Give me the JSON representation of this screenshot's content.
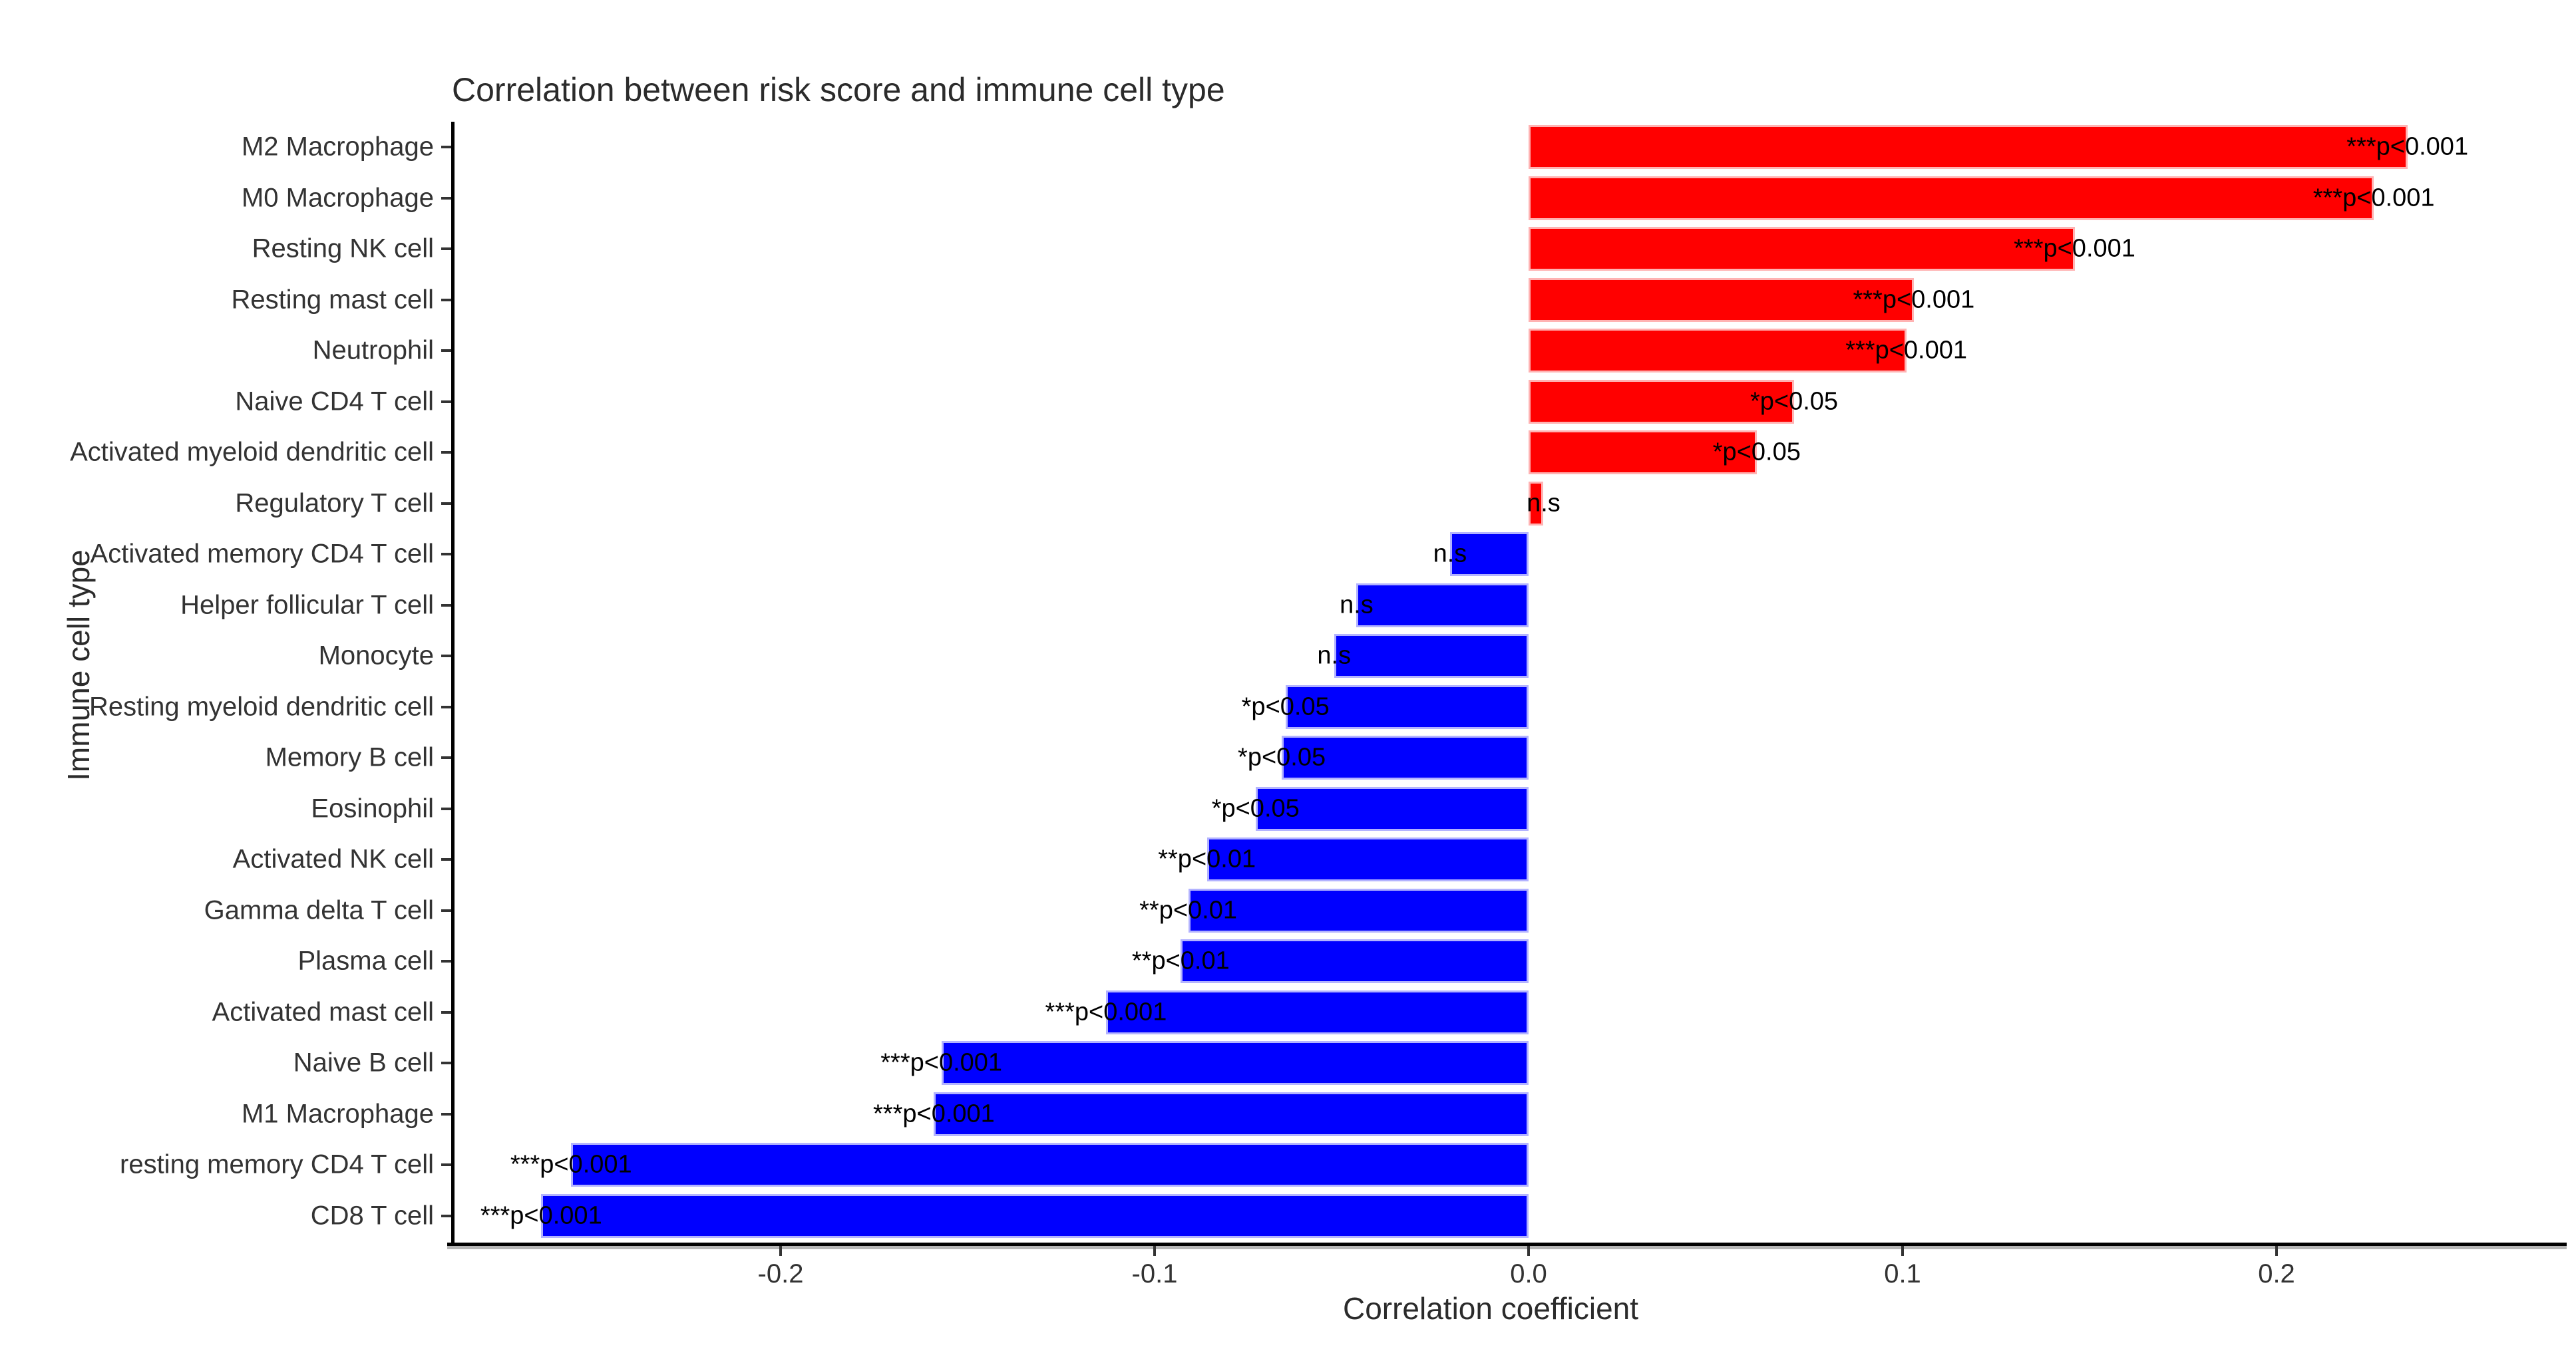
{
  "chart_data": {
    "type": "bar",
    "orientation": "horizontal",
    "title": "Correlation between risk score and immune cell type",
    "xlabel": "Correlation coefficient",
    "ylabel": "Immune cell type",
    "xlim": [
      -0.29,
      0.28
    ],
    "x_ticks": [
      -0.2,
      -0.1,
      0.0,
      0.1,
      0.2
    ],
    "x_tick_labels": [
      "-0.2",
      "-0.1",
      "0.0",
      "0.1",
      "0.2"
    ],
    "grid": false,
    "legend": "none",
    "positive_color": "#ff0000",
    "negative_color": "#0000ff",
    "rows": [
      {
        "category": "M2 Macrophage",
        "value": 0.235,
        "significance": "***p<0.001"
      },
      {
        "category": "M0 Macrophage",
        "value": 0.226,
        "significance": "***p<0.001"
      },
      {
        "category": "Resting NK cell",
        "value": 0.146,
        "significance": "***p<0.001"
      },
      {
        "category": "Resting mast cell",
        "value": 0.103,
        "significance": "***p<0.001"
      },
      {
        "category": "Neutrophil",
        "value": 0.101,
        "significance": "***p<0.001"
      },
      {
        "category": "Naive CD4 T cell",
        "value": 0.071,
        "significance": "*p<0.05"
      },
      {
        "category": "Activated myeloid dendritic cell",
        "value": 0.061,
        "significance": "*p<0.05"
      },
      {
        "category": "Regulatory T cell",
        "value": 0.004,
        "significance": "n.s"
      },
      {
        "category": "Activated memory CD4 T cell",
        "value": -0.021,
        "significance": "n.s"
      },
      {
        "category": "Helper follicular T cell",
        "value": -0.046,
        "significance": "n.s"
      },
      {
        "category": "Monocyte",
        "value": -0.052,
        "significance": "n.s"
      },
      {
        "category": "Resting myeloid dendritic cell",
        "value": -0.065,
        "significance": "*p<0.05"
      },
      {
        "category": "Memory B cell",
        "value": -0.066,
        "significance": "*p<0.05"
      },
      {
        "category": "Eosinophil",
        "value": -0.073,
        "significance": "*p<0.05"
      },
      {
        "category": "Activated NK cell",
        "value": -0.086,
        "significance": "**p<0.01"
      },
      {
        "category": "Gamma delta T cell",
        "value": -0.091,
        "significance": "**p<0.01"
      },
      {
        "category": "Plasma cell",
        "value": -0.093,
        "significance": "**p<0.01"
      },
      {
        "category": "Activated mast cell",
        "value": -0.113,
        "significance": "***p<0.001"
      },
      {
        "category": "Naive B cell",
        "value": -0.157,
        "significance": "***p<0.001"
      },
      {
        "category": "M1 Macrophage",
        "value": -0.159,
        "significance": "***p<0.001"
      },
      {
        "category": "resting memory CD4 T cell",
        "value": -0.256,
        "significance": "***p<0.001"
      },
      {
        "category": "CD8 T cell",
        "value": -0.264,
        "significance": "***p<0.001"
      }
    ]
  }
}
